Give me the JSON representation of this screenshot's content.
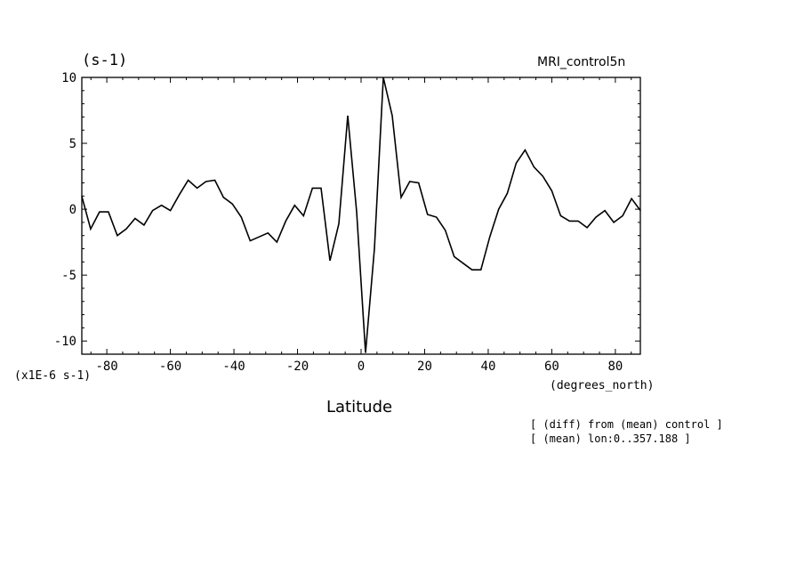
{
  "chart_data": {
    "type": "line",
    "title": "",
    "ylabel": "(s-1)",
    "dataset": "MRI_control5n",
    "scale_label": "(x1E-6 s-1)",
    "xlabel": "Latitude",
    "xunits": "(degrees_north)",
    "notes": [
      "[ (diff) from (mean) control ]",
      "[ (mean) lon:0..357.188 ]"
    ],
    "xlim": [
      -87.8638,
      87.8638
    ],
    "ylim": [
      -11,
      10
    ],
    "xticks": [
      -80,
      -60,
      -40,
      -20,
      0,
      20,
      40,
      60,
      80
    ],
    "xtick_labels": [
      "-80",
      "-60",
      "-40",
      "-20",
      "0",
      "20",
      "40",
      "60",
      "80"
    ],
    "yticks": [
      -10,
      -5,
      0,
      5,
      10
    ],
    "ytick_labels": [
      "-10",
      "-5",
      "0",
      "5",
      "10"
    ],
    "grid": false,
    "series": [
      {
        "x": [
          -87.9,
          -85.1,
          -82.3,
          -79.5,
          -76.7,
          -73.9,
          -71.1,
          -68.3,
          -65.6,
          -62.8,
          -60.0,
          -57.2,
          -54.4,
          -51.6,
          -48.8,
          -46.0,
          -43.3,
          -40.5,
          -37.7,
          -34.9,
          -32.1,
          -29.3,
          -26.5,
          -23.7,
          -20.9,
          -18.1,
          -15.3,
          -12.6,
          -9.8,
          -7.0,
          -4.2,
          -1.4,
          1.4,
          4.2,
          7.0,
          9.8,
          12.6,
          15.3,
          18.1,
          20.9,
          23.7,
          26.5,
          29.3,
          32.1,
          34.9,
          37.7,
          40.5,
          43.3,
          46.0,
          48.8,
          51.6,
          54.4,
          57.2,
          60.0,
          62.8,
          65.6,
          68.3,
          71.1,
          73.9,
          76.7,
          79.5,
          82.3,
          85.1,
          87.9
        ],
        "values": [
          1.0,
          -1.5,
          -0.2,
          -0.2,
          -2.0,
          -1.5,
          -0.7,
          -1.2,
          -0.1,
          0.3,
          -0.1,
          1.1,
          2.2,
          1.6,
          2.1,
          2.2,
          0.9,
          0.4,
          -0.6,
          -2.4,
          -2.1,
          -1.8,
          -2.5,
          -0.9,
          0.3,
          -0.5,
          1.6,
          1.6,
          -3.9,
          -1.1,
          7.1,
          -0.2,
          -10.9,
          -3.0,
          10.0,
          7.1,
          0.9,
          2.1,
          2.0,
          -0.4,
          -0.6,
          -1.6,
          -3.6,
          -4.1,
          -4.6,
          -4.6,
          -2.1,
          0.0,
          1.2,
          3.5,
          4.5,
          3.2,
          2.5,
          1.4,
          -0.5,
          -0.9,
          -0.9,
          -1.4,
          -0.6,
          -0.1,
          -1.0,
          -0.5,
          0.8,
          -0.1
        ]
      }
    ]
  }
}
